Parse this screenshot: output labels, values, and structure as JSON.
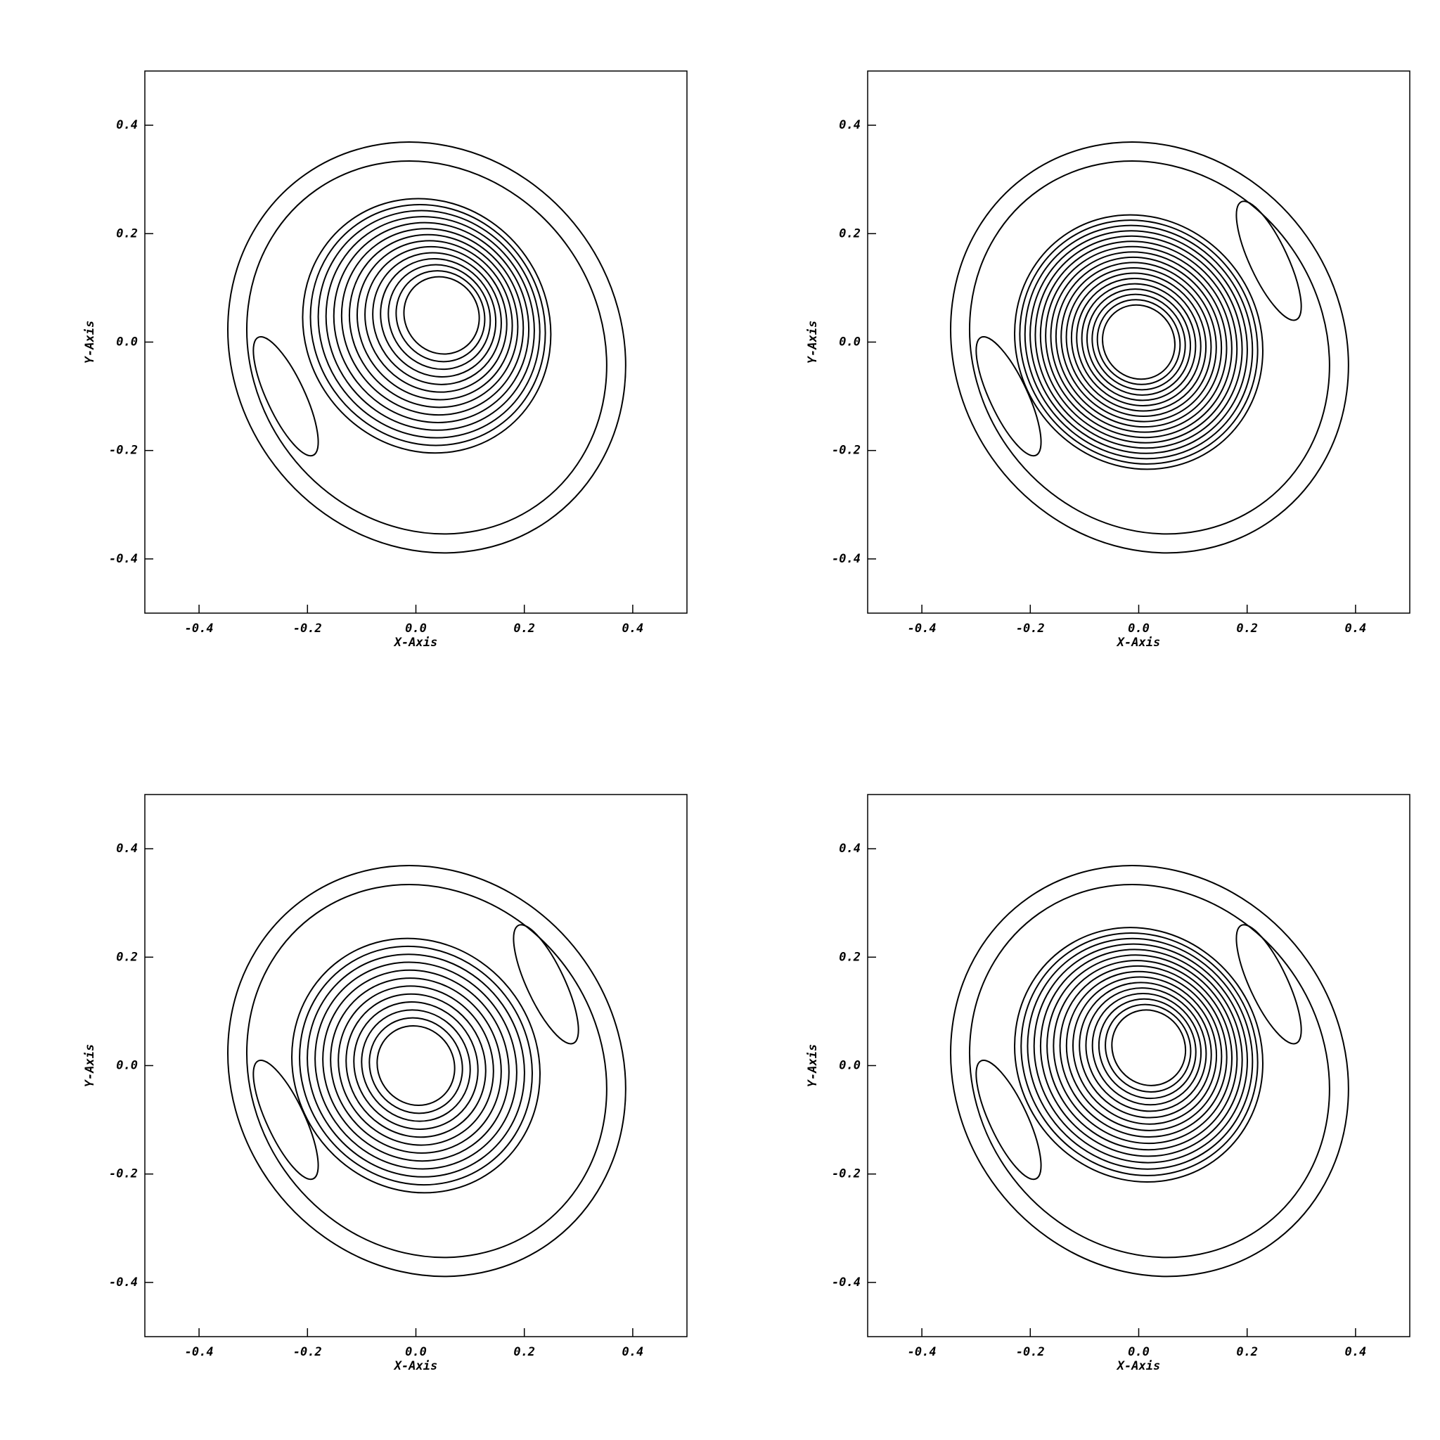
{
  "chart_data": [
    {
      "type": "contour",
      "xlabel": "X-Axis",
      "ylabel": "Y-Axis",
      "xlim": [
        -0.5,
        0.5
      ],
      "ylim": [
        -0.5,
        0.5
      ],
      "xticks": [
        -0.4,
        -0.2,
        {
          "value": 0,
          "label": "0.0"
        },
        0.2,
        0.4
      ],
      "yticks": [
        -0.4,
        -0.2,
        {
          "value": 0,
          "label": "0.0"
        },
        0.2,
        0.4
      ]
    },
    {
      "type": "contour",
      "xlabel": "X-Axis",
      "ylabel": "Y-Axis",
      "xlim": [
        -0.5,
        0.5
      ],
      "ylim": [
        -0.5,
        0.5
      ],
      "xticks": [
        -0.4,
        -0.2,
        {
          "value": 0,
          "label": "0.0"
        },
        0.2,
        0.4
      ],
      "yticks": [
        -0.4,
        -0.2,
        {
          "value": 0,
          "label": "0.0"
        },
        0.2,
        0.4
      ]
    },
    {
      "type": "contour",
      "xlabel": "X-Axis",
      "ylabel": "Y-Axis",
      "xlim": [
        -0.5,
        0.5
      ],
      "ylim": [
        -0.5,
        0.5
      ],
      "xticks": [
        -0.4,
        -0.2,
        {
          "value": 0,
          "label": "0.0"
        },
        0.2,
        0.4
      ],
      "yticks": [
        -0.4,
        -0.2,
        {
          "value": 0,
          "label": "0.0"
        },
        0.2,
        0.4
      ]
    },
    {
      "type": "contour",
      "xlabel": "X-Axis",
      "ylabel": "Y-Axis",
      "xlim": [
        -0.5,
        0.5
      ],
      "ylim": [
        -0.5,
        0.5
      ],
      "xticks": [
        -0.4,
        -0.2,
        {
          "value": 0,
          "label": "0.0"
        },
        0.2,
        0.4
      ],
      "yticks": [
        -0.4,
        -0.2,
        {
          "value": 0,
          "label": "0.0"
        },
        0.2,
        0.4
      ]
    }
  ]
}
